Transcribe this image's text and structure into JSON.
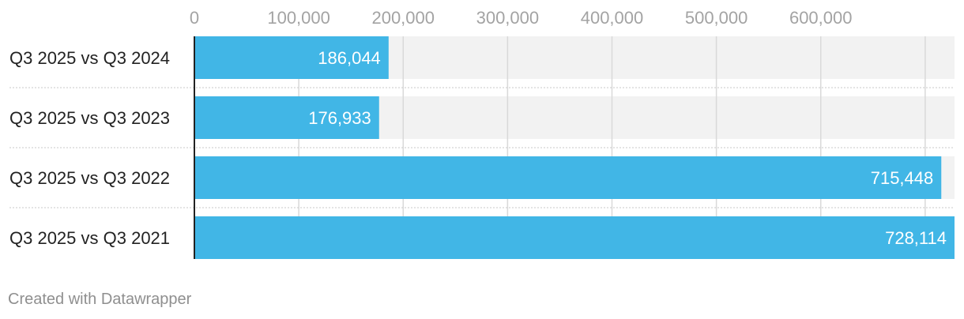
{
  "chart_data": {
    "type": "bar",
    "orientation": "horizontal",
    "categories": [
      "Q3 2025 vs Q3 2024",
      "Q3 2025 vs Q3 2023",
      "Q3 2025 vs Q3 2022",
      "Q3 2025 vs Q3 2021"
    ],
    "values": [
      186044,
      176933,
      715448,
      728114
    ],
    "value_labels": [
      "186,044",
      "176,933",
      "715,448",
      "728,114"
    ],
    "x_ticks": [
      0,
      100000,
      200000,
      300000,
      400000,
      500000,
      600000
    ],
    "x_tick_labels": [
      "0",
      "100,000",
      "200,000",
      "300,000",
      "400,000",
      "500,000",
      "600,000"
    ],
    "xlim": [
      0,
      728114
    ],
    "grid": true,
    "legend": "none",
    "colors": {
      "bar": "#41b6e6",
      "track": "#f2f2f2",
      "grid": "#d9d9d9",
      "tick_label": "#a3a3a3",
      "category_label": "#222222",
      "value_label": "#ffffff"
    }
  },
  "footer": {
    "credit": "Created with Datawrapper"
  }
}
